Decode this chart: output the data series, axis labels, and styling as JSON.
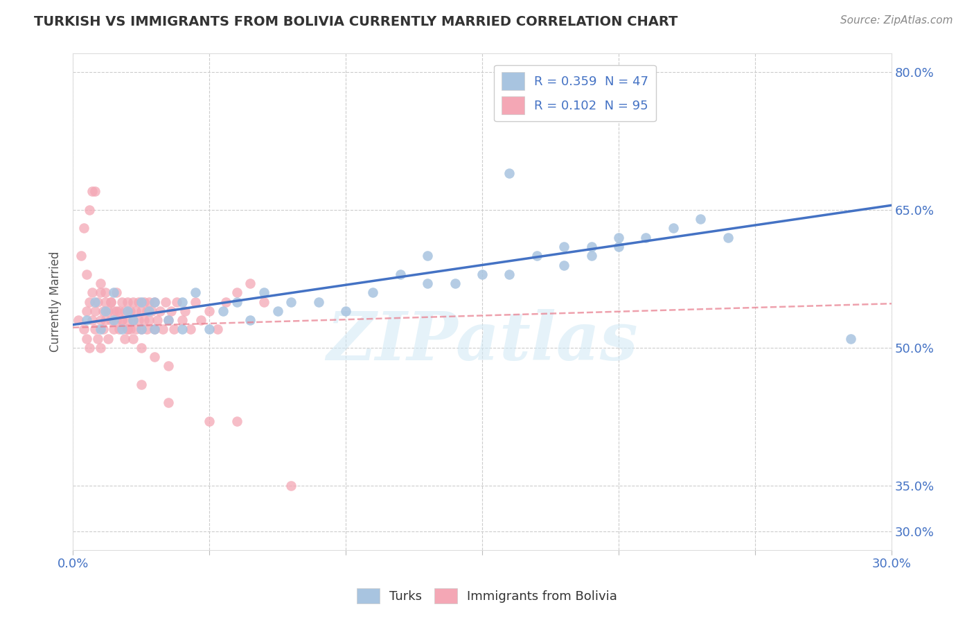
{
  "title": "TURKISH VS IMMIGRANTS FROM BOLIVIA CURRENTLY MARRIED CORRELATION CHART",
  "source": "Source: ZipAtlas.com",
  "ylabel": "Currently Married",
  "xlim": [
    0.0,
    0.3
  ],
  "ylim": [
    0.28,
    0.82
  ],
  "ytick_positions": [
    0.3,
    0.35,
    0.5,
    0.65,
    0.8
  ],
  "ytick_labels": [
    "30.0%",
    "35.0%",
    "50.0%",
    "65.0%",
    "80.0%"
  ],
  "xtick_positions": [
    0.0,
    0.05,
    0.1,
    0.15,
    0.2,
    0.25,
    0.3
  ],
  "xtick_labels": [
    "0.0%",
    "",
    "",
    "",
    "",
    "",
    "30.0%"
  ],
  "legend_entries": [
    {
      "label": "R = 0.359  N = 47",
      "color": "#a8c4e0"
    },
    {
      "label": "R = 0.102  N = 95",
      "color": "#f4a7b5"
    }
  ],
  "turks_scatter_x": [
    0.005,
    0.008,
    0.01,
    0.012,
    0.015,
    0.015,
    0.018,
    0.02,
    0.022,
    0.025,
    0.025,
    0.028,
    0.03,
    0.03,
    0.035,
    0.04,
    0.04,
    0.045,
    0.05,
    0.055,
    0.06,
    0.065,
    0.07,
    0.075,
    0.08,
    0.09,
    0.1,
    0.11,
    0.12,
    0.13,
    0.14,
    0.15,
    0.16,
    0.18,
    0.19,
    0.2,
    0.21,
    0.22,
    0.23,
    0.24,
    0.13,
    0.17,
    0.18,
    0.19,
    0.2,
    0.285,
    0.16
  ],
  "turks_scatter_y": [
    0.53,
    0.55,
    0.52,
    0.54,
    0.53,
    0.56,
    0.52,
    0.54,
    0.53,
    0.52,
    0.55,
    0.54,
    0.52,
    0.55,
    0.53,
    0.55,
    0.52,
    0.56,
    0.52,
    0.54,
    0.55,
    0.53,
    0.56,
    0.54,
    0.55,
    0.55,
    0.54,
    0.56,
    0.58,
    0.57,
    0.57,
    0.58,
    0.58,
    0.59,
    0.6,
    0.61,
    0.62,
    0.63,
    0.64,
    0.62,
    0.6,
    0.6,
    0.61,
    0.61,
    0.62,
    0.51,
    0.69
  ],
  "bolivia_scatter_x": [
    0.002,
    0.004,
    0.005,
    0.005,
    0.006,
    0.006,
    0.007,
    0.007,
    0.008,
    0.008,
    0.009,
    0.009,
    0.01,
    0.01,
    0.01,
    0.011,
    0.011,
    0.012,
    0.012,
    0.013,
    0.013,
    0.014,
    0.014,
    0.015,
    0.015,
    0.016,
    0.016,
    0.017,
    0.017,
    0.018,
    0.018,
    0.019,
    0.019,
    0.02,
    0.02,
    0.02,
    0.021,
    0.021,
    0.022,
    0.022,
    0.023,
    0.023,
    0.024,
    0.024,
    0.025,
    0.025,
    0.026,
    0.026,
    0.027,
    0.027,
    0.028,
    0.028,
    0.029,
    0.03,
    0.03,
    0.031,
    0.032,
    0.033,
    0.034,
    0.035,
    0.036,
    0.037,
    0.038,
    0.04,
    0.041,
    0.043,
    0.045,
    0.047,
    0.05,
    0.053,
    0.056,
    0.06,
    0.065,
    0.07,
    0.003,
    0.004,
    0.005,
    0.006,
    0.007,
    0.008,
    0.01,
    0.012,
    0.014,
    0.016,
    0.018,
    0.02,
    0.022,
    0.025,
    0.03,
    0.035,
    0.025,
    0.035,
    0.05,
    0.06,
    0.08
  ],
  "bolivia_scatter_y": [
    0.53,
    0.52,
    0.54,
    0.51,
    0.55,
    0.5,
    0.53,
    0.56,
    0.52,
    0.54,
    0.51,
    0.55,
    0.53,
    0.56,
    0.5,
    0.54,
    0.52,
    0.55,
    0.53,
    0.54,
    0.51,
    0.55,
    0.53,
    0.52,
    0.54,
    0.53,
    0.56,
    0.52,
    0.54,
    0.53,
    0.55,
    0.51,
    0.54,
    0.52,
    0.55,
    0.53,
    0.54,
    0.52,
    0.55,
    0.53,
    0.54,
    0.52,
    0.55,
    0.53,
    0.54,
    0.52,
    0.55,
    0.53,
    0.54,
    0.52,
    0.55,
    0.53,
    0.54,
    0.52,
    0.55,
    0.53,
    0.54,
    0.52,
    0.55,
    0.53,
    0.54,
    0.52,
    0.55,
    0.53,
    0.54,
    0.52,
    0.55,
    0.53,
    0.54,
    0.52,
    0.55,
    0.56,
    0.57,
    0.55,
    0.6,
    0.63,
    0.58,
    0.65,
    0.67,
    0.67,
    0.57,
    0.56,
    0.55,
    0.54,
    0.53,
    0.52,
    0.51,
    0.5,
    0.49,
    0.48,
    0.46,
    0.44,
    0.42,
    0.42,
    0.35
  ],
  "turks_line_x": [
    0.0,
    0.3
  ],
  "turks_line_y": [
    0.525,
    0.655
  ],
  "bolivia_line_x": [
    0.0,
    0.3
  ],
  "bolivia_line_y": [
    0.522,
    0.548
  ],
  "turks_color": "#4472c4",
  "turks_scatter_color": "#a8c4e0",
  "bolivia_line_color": "#e87a8a",
  "bolivia_scatter_color": "#f4a7b5",
  "watermark_text": "ZIPatlas",
  "grid_color": "#cccccc",
  "title_color": "#333333",
  "axis_label_color": "#555555",
  "tick_color": "#4472c4",
  "source_color": "#888888"
}
